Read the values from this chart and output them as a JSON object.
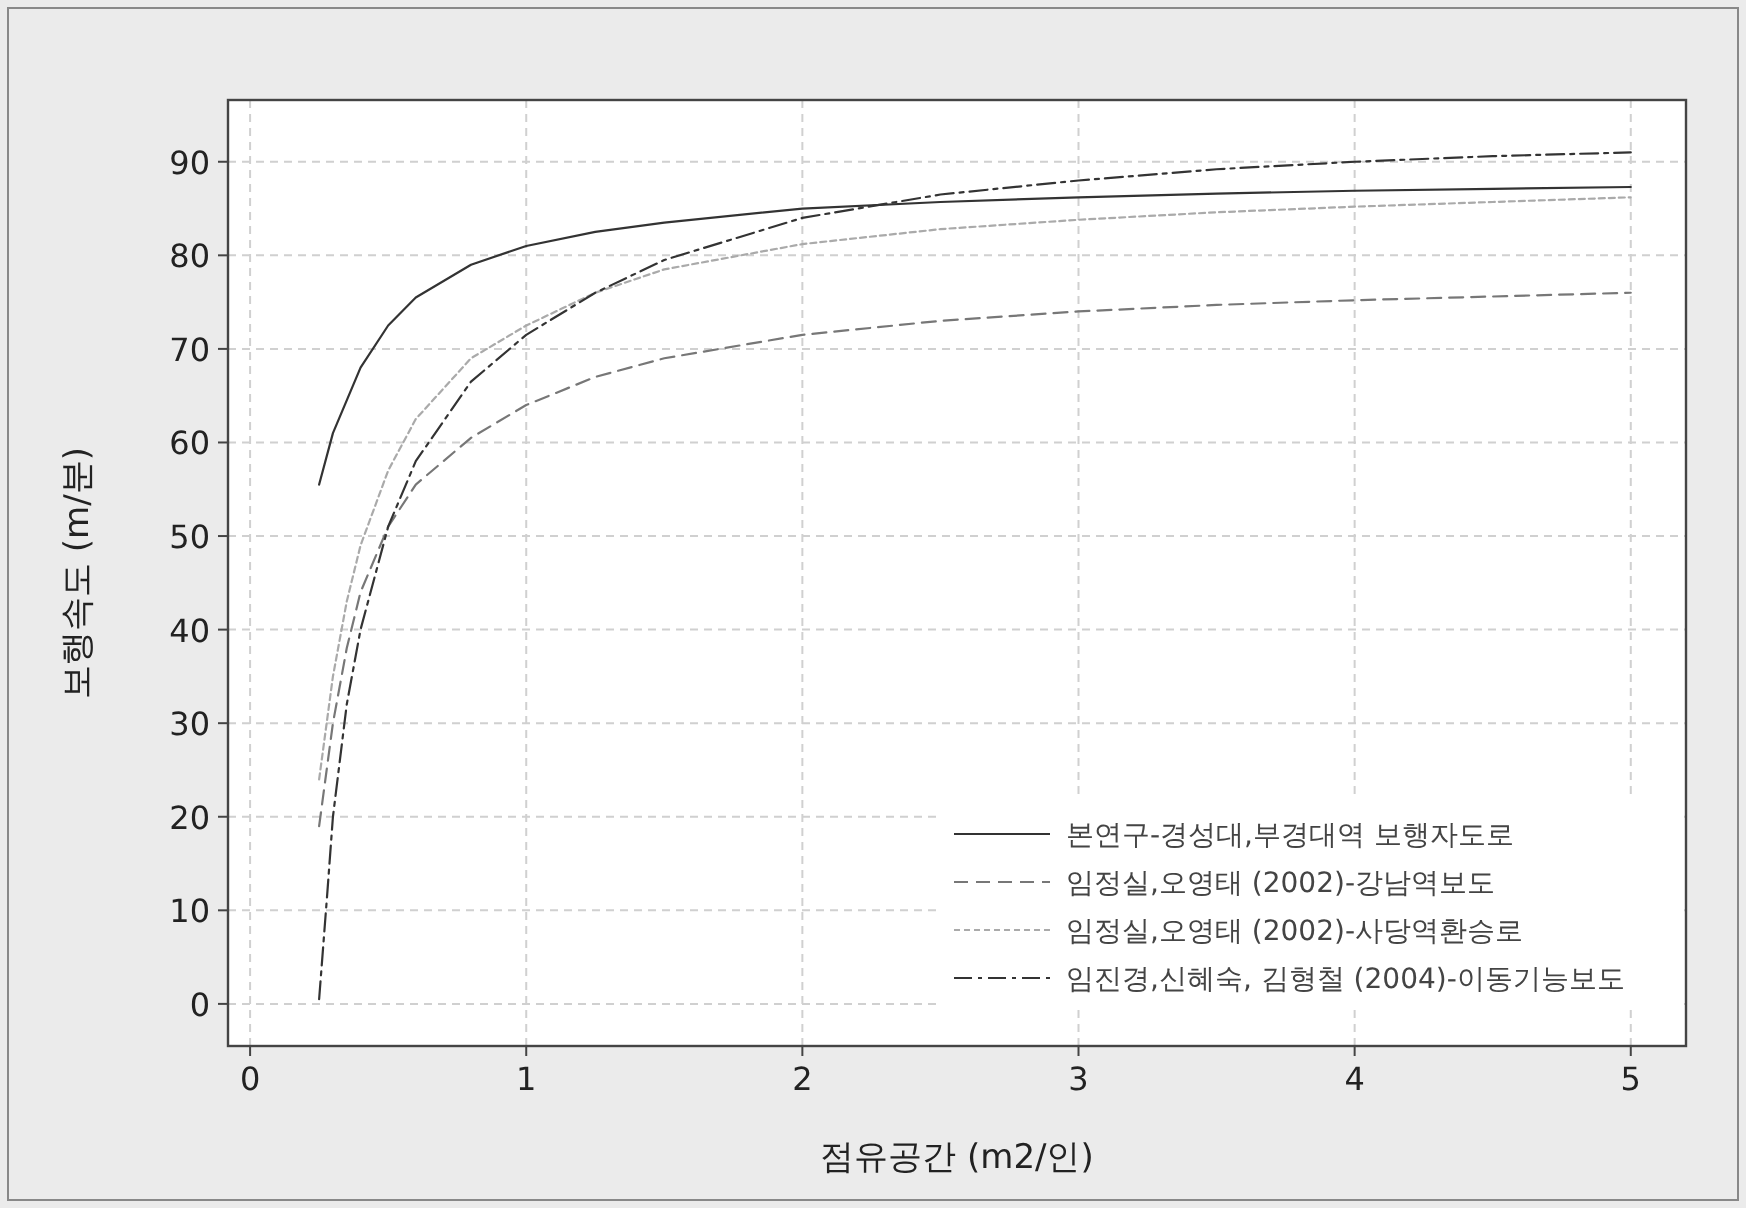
{
  "chart_data": {
    "type": "line",
    "xlabel": "점유공간 (m2/인)",
    "ylabel": "보행속도 (m/분)",
    "xlim": [
      -0.08,
      5.2
    ],
    "ylim": [
      -4.5,
      96.6
    ],
    "xticks": [
      0,
      1,
      2,
      3,
      4,
      5
    ],
    "yticks": [
      0,
      10,
      20,
      30,
      40,
      50,
      60,
      70,
      80,
      90
    ],
    "grid": true,
    "legend": "bottom right",
    "marker": "none",
    "series": [
      {
        "name": "본연구-경성대,부경대역 보행자도로",
        "color": "#333333",
        "line_style": "solid",
        "x": [
          0.25,
          0.3,
          0.4,
          0.5,
          0.6,
          0.8,
          1.0,
          1.25,
          1.5,
          2,
          2.5,
          3,
          3.5,
          4,
          4.5,
          5
        ],
        "values": [
          55.5,
          61,
          68,
          72.5,
          75.5,
          79,
          81,
          82.5,
          83.5,
          85,
          85.7,
          86.2,
          86.6,
          86.9,
          87.1,
          87.3
        ]
      },
      {
        "name": "임정실,오영태 (2002)-강남역보도",
        "color": "#777777",
        "line_style": "dashed",
        "x": [
          0.25,
          0.3,
          0.35,
          0.4,
          0.5,
          0.6,
          0.8,
          1.0,
          1.25,
          1.5,
          2,
          2.5,
          3,
          3.5,
          4,
          4.5,
          5
        ],
        "values": [
          19,
          30,
          38,
          44,
          51,
          55.5,
          60.5,
          64,
          67,
          69,
          71.5,
          73,
          74,
          74.7,
          75.2,
          75.6,
          76
        ]
      },
      {
        "name": "임정실,오영태 (2002)-사당역환승로",
        "color": "#aaaaaa",
        "line_style": "dotted",
        "x": [
          0.25,
          0.3,
          0.35,
          0.4,
          0.5,
          0.6,
          0.8,
          1.0,
          1.25,
          1.5,
          2,
          2.5,
          3,
          3.5,
          4,
          4.5,
          5
        ],
        "values": [
          24,
          35,
          43,
          49,
          57,
          62.5,
          69,
          72.5,
          76,
          78.5,
          81.2,
          82.8,
          83.8,
          84.6,
          85.2,
          85.7,
          86.2
        ]
      },
      {
        "name": "임진경,신혜숙, 김형철 (2004)-이동기능보도",
        "color": "#333333",
        "line_style": "dashdot",
        "x": [
          0.25,
          0.28,
          0.3,
          0.35,
          0.4,
          0.5,
          0.6,
          0.8,
          1.0,
          1.25,
          1.5,
          2,
          2.5,
          3,
          3.5,
          4,
          4.5,
          5
        ],
        "values": [
          0.5,
          12,
          20,
          32,
          40,
          51,
          58,
          66.5,
          71.5,
          76,
          79.5,
          84,
          86.5,
          88,
          89.2,
          90,
          90.6,
          91
        ]
      }
    ]
  }
}
